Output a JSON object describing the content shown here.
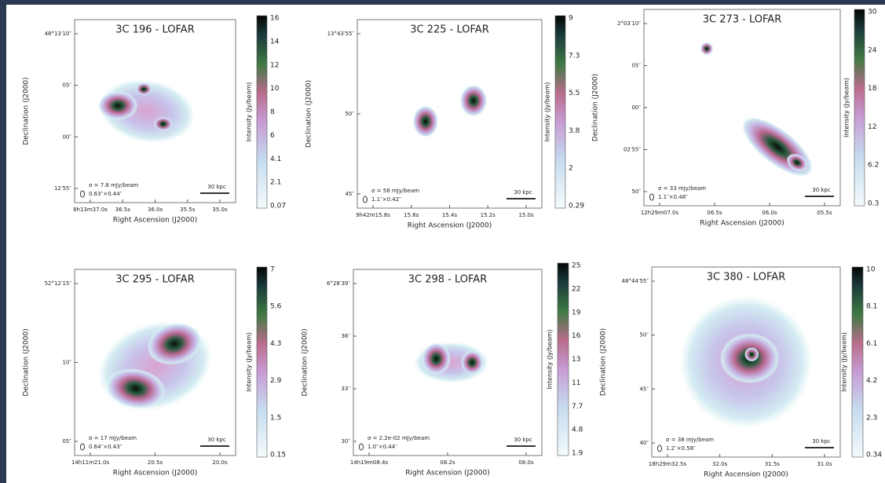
{
  "ra_label": "Right Ascension (J2000)",
  "dec_label": "Declination (J2000)",
  "cbar_label": "Intensity (Jy/beam)",
  "panels": [
    {
      "title": "3C 196 - LOFAR",
      "dec_ticks": [
        "48°13′10″",
        "05″",
        "00″",
        "12′55″"
      ],
      "ra_ticks": [
        "8h13m37.0s",
        "36.5s",
        "36.0s",
        "35.5s",
        "35.0s"
      ],
      "cbar_ticks": [
        "16",
        "14",
        "12",
        "10",
        "8",
        "6",
        "4.1",
        "2.1",
        "0.07"
      ],
      "sigma": "σ = 7.8 mJy/beam",
      "beam": "0.63″×0.44″",
      "scale": "30 kpc"
    },
    {
      "title": "3C 225 - LOFAR",
      "dec_ticks": [
        "13°43′55″",
        "50″",
        "45″"
      ],
      "ra_ticks": [
        "9h42m15.8s",
        "15.6s",
        "15.4s",
        "15.2s",
        "15.0s"
      ],
      "cbar_ticks": [
        "9",
        "7.3",
        "5.5",
        "3.8",
        "2",
        "0.29"
      ],
      "sigma": "σ = 58 mJy/beam",
      "beam": "1.1″×0.42″",
      "scale": "30 kpc"
    },
    {
      "title": "3C 273 - LOFAR",
      "dec_ticks": [
        "2°03′10″",
        "05″",
        "00″",
        "02′55″",
        "50″"
      ],
      "ra_ticks": [
        "12h29m07.0s",
        "06.5s",
        "06.0s",
        "05.5s"
      ],
      "cbar_ticks": [
        "30",
        "24",
        "18",
        "12",
        "6.2",
        "0.3"
      ],
      "sigma": "σ = 33 mJy/beam",
      "beam": "1.1″×0.48″",
      "scale": "30 kpc"
    },
    {
      "title": "3C 295 - LOFAR",
      "dec_ticks": [
        "52°12′15″",
        "10″",
        "05″"
      ],
      "ra_ticks": [
        "14h11m21.0s",
        "20.5s",
        "20.0s"
      ],
      "cbar_ticks": [
        "7",
        "5.6",
        "4.3",
        "2.9",
        "1.5",
        "0.15"
      ],
      "sigma": "σ = 17 mJy/beam",
      "beam": "0.64″×0.43″",
      "scale": "30 kpc"
    },
    {
      "title": "3C 298 - LOFAR",
      "dec_ticks": [
        "6°28′39″",
        "36″",
        "33″",
        "30″"
      ],
      "ra_ticks": [
        "14h19m08.4s",
        "08.2s",
        "08.0s"
      ],
      "cbar_ticks": [
        "25",
        "22",
        "19",
        "16",
        "13",
        "11",
        "7.7",
        "4.8",
        "1.9"
      ],
      "sigma": "σ = 2.2e-02 mJy/beam",
      "beam": "1.0″×0.44″",
      "scale": "30 kpc"
    },
    {
      "title": "3C 380 - LOFAR",
      "dec_ticks": [
        "48°44′55″",
        "50″",
        "45″",
        "40″"
      ],
      "ra_ticks": [
        "18h29m32.5s",
        "32.0s",
        "31.5s",
        "31.0s"
      ],
      "cbar_ticks": [
        "10",
        "8.1",
        "6.1",
        "4.2",
        "2.3",
        "0.34"
      ],
      "sigma": "σ = 38 mJy/beam",
      "beam": "1.2″×0.58″",
      "scale": "30 kpc"
    }
  ]
}
